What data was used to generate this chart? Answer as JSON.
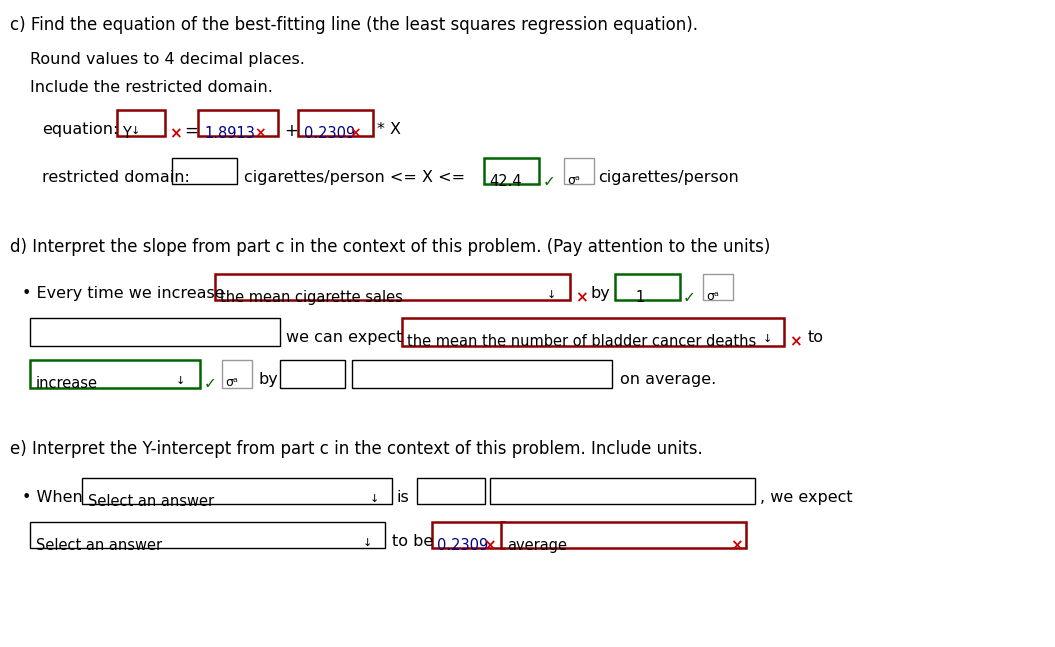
{
  "bg_color": "#ffffff",
  "dark_red": "#8B0000",
  "green": "#006400",
  "red_x_color": "#cc0000",
  "gray_border": "#999999",
  "section_c": "c) Find the equation of the best-fitting line (the least squares regression equation).",
  "round_note": "Round values to 4 decimal places.",
  "domain_note": "Include the restricted domain.",
  "val1": "1.8913",
  "val2": "0.2309",
  "domain_val": "42.4",
  "dropdown_d1": "the mean cigarette sales",
  "dropdown_d2": "the mean the number of bladder cancer deaths",
  "increase_text": "increase",
  "select_ans": "Select an answer",
  "val_e": "0.2309",
  "section_d": "d) Interpret the slope from part c in the context of this problem. (Pay attention to the units)",
  "section_e": "e) Interpret the Y-intercept from part c in the context of this problem. Include units."
}
